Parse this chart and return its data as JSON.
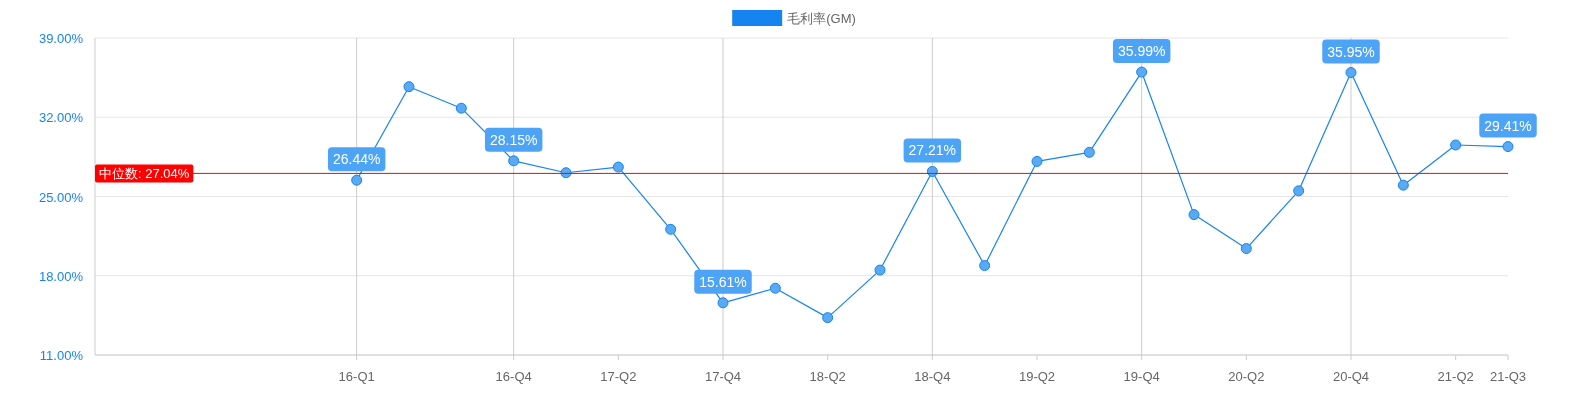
{
  "chart_data": {
    "type": "line",
    "categories": [
      null,
      null,
      null,
      null,
      null,
      "16-Q1",
      null,
      null,
      "16-Q4",
      null,
      "17-Q2",
      null,
      "17-Q4",
      null,
      "18-Q2",
      null,
      "18-Q4",
      null,
      "19-Q2",
      null,
      "19-Q4",
      null,
      "20-Q2",
      null,
      "20-Q4",
      null,
      "21-Q2",
      "21-Q3"
    ],
    "series": [
      {
        "name": "毛利率(GM)",
        "color": "#1684f0",
        "values": [
          null,
          null,
          null,
          null,
          null,
          26.44,
          34.7,
          32.8,
          28.15,
          27.1,
          27.6,
          22.1,
          15.61,
          16.9,
          14.3,
          18.5,
          27.21,
          18.9,
          28.1,
          28.9,
          35.99,
          23.4,
          20.4,
          25.5,
          35.95,
          26.0,
          29.55,
          29.41
        ],
        "value_labels": [
          null,
          null,
          null,
          null,
          null,
          "26.44%",
          null,
          null,
          "28.15%",
          null,
          null,
          null,
          "15.61%",
          null,
          null,
          null,
          "27.21%",
          null,
          null,
          null,
          "35.99%",
          null,
          null,
          null,
          "35.95%",
          null,
          null,
          "29.41%"
        ]
      }
    ],
    "ylim": [
      11,
      39
    ],
    "yticks": [
      {
        "value": 11,
        "label": "11.00%"
      },
      {
        "value": 18,
        "label": "18.00%"
      },
      {
        "value": 25,
        "label": "25.00%"
      },
      {
        "value": 32,
        "label": "32.00%"
      },
      {
        "value": 39,
        "label": "39.00%"
      }
    ],
    "ref_lines": [
      {
        "axis": "y",
        "value": 27.04,
        "label": "中位数: 27.04%",
        "color": "#ff0000"
      },
      {
        "axis": "x",
        "value": "16-Q1",
        "color": "#cccccc"
      },
      {
        "axis": "x",
        "value": "16-Q4",
        "color": "#cccccc"
      },
      {
        "axis": "x",
        "value": "17-Q4",
        "color": "#cccccc"
      },
      {
        "axis": "x",
        "value": "18-Q4",
        "color": "#cccccc"
      },
      {
        "axis": "x",
        "value": "19-Q4",
        "color": "#cccccc"
      },
      {
        "axis": "x",
        "value": "20-Q4",
        "color": "#cccccc"
      }
    ],
    "grid": "y",
    "legend": "top",
    "marker": "circle"
  }
}
